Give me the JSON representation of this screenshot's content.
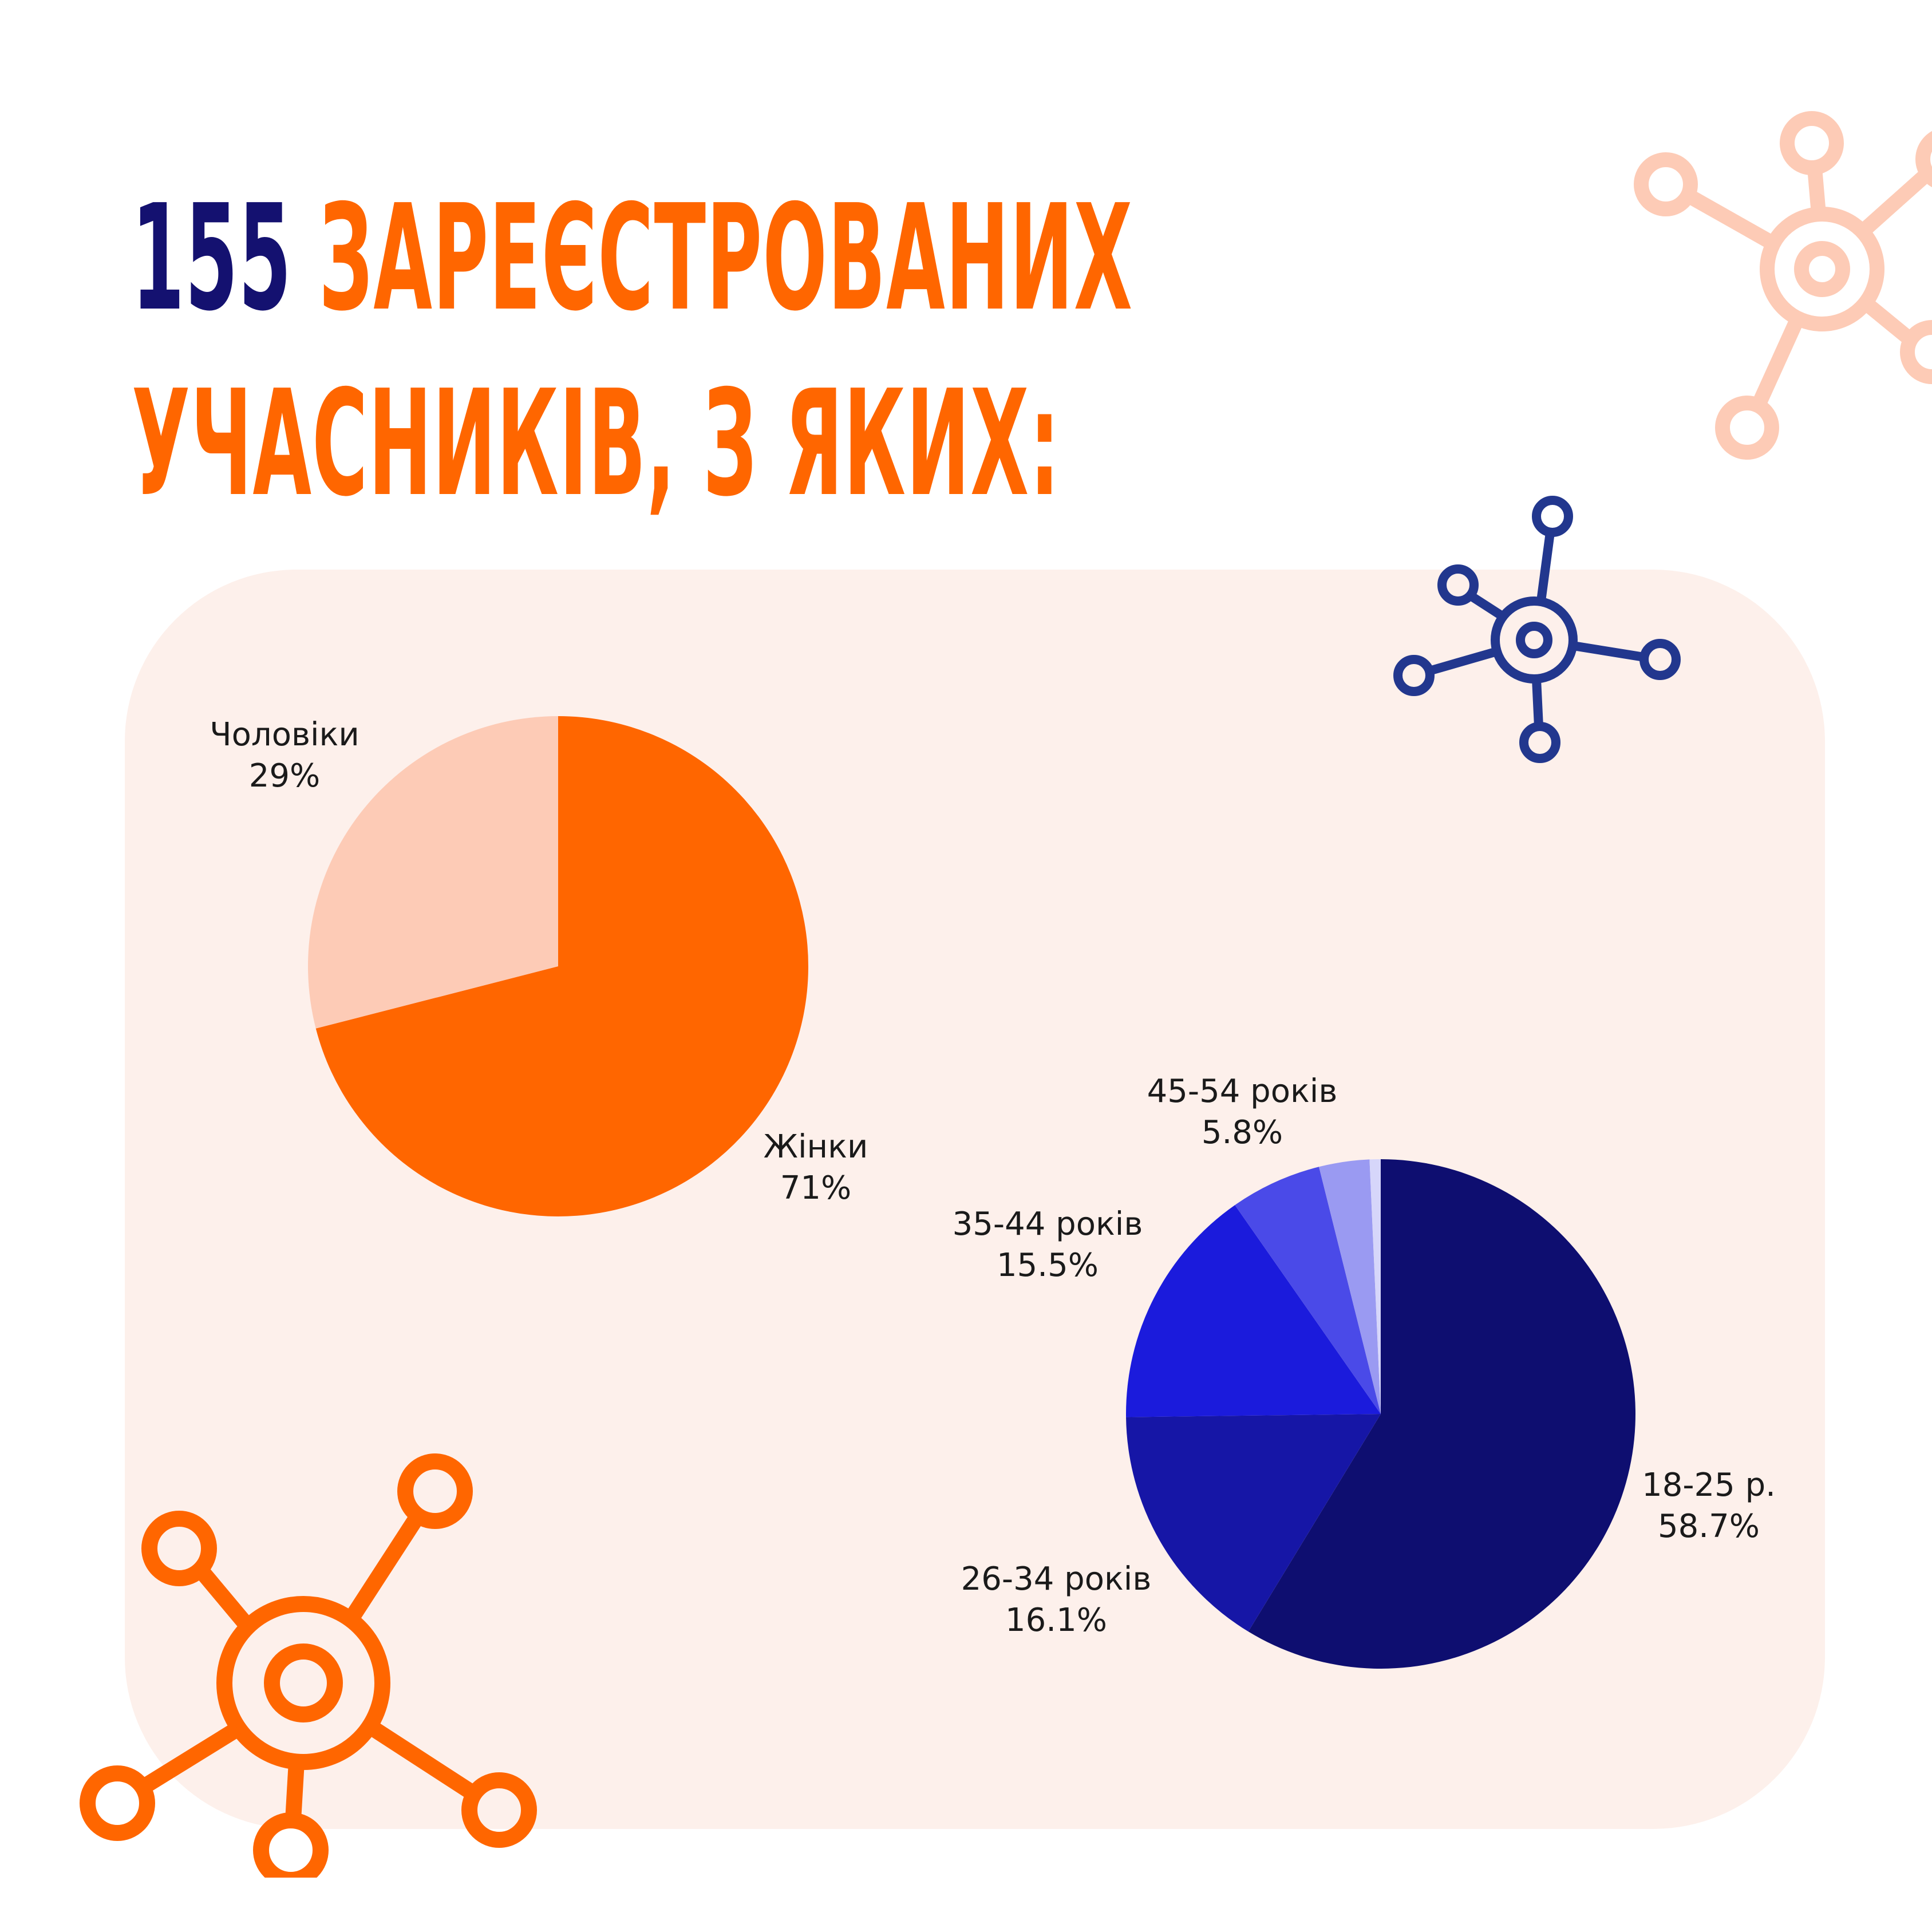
{
  "headline": {
    "number": "155",
    "line1_rest": "ЗАРЕЄСТРОВАНИХ",
    "line2": "УЧАСНИКІВ, З ЯКИХ:"
  },
  "colors": {
    "headline_number": "#141170",
    "headline_text": "#ff6600",
    "panel_background": "#fdf0eb"
  },
  "icons": [
    "network-node-icon"
  ],
  "chart_data": [
    {
      "type": "pie",
      "slices": [
        {
          "label": "Жінки",
          "value_label": "71%",
          "value": 71,
          "color": "#ff6600"
        },
        {
          "label": "Чоловіки",
          "value_label": "29%",
          "value": 29,
          "color": "#fdcbb6"
        }
      ]
    },
    {
      "type": "pie",
      "slices": [
        {
          "label": "18-25 р.",
          "value_label": "58.7%",
          "value": 58.7,
          "color": "#0e0e70"
        },
        {
          "label": "26-34 років",
          "value_label": "16.1%",
          "value": 16.1,
          "color": "#1616a6"
        },
        {
          "label": "35-44 років",
          "value_label": "15.5%",
          "value": 15.5,
          "color": "#1b1bdc"
        },
        {
          "label": "45-54 років",
          "value_label": "5.8%",
          "value": 5.8,
          "color": "#4a4ae8"
        },
        {
          "label": "",
          "value_label": "",
          "value": 3.2,
          "color": "#9a9af2"
        },
        {
          "label": "",
          "value_label": "",
          "value": 0.7,
          "color": "#d6d6fa"
        }
      ]
    }
  ]
}
